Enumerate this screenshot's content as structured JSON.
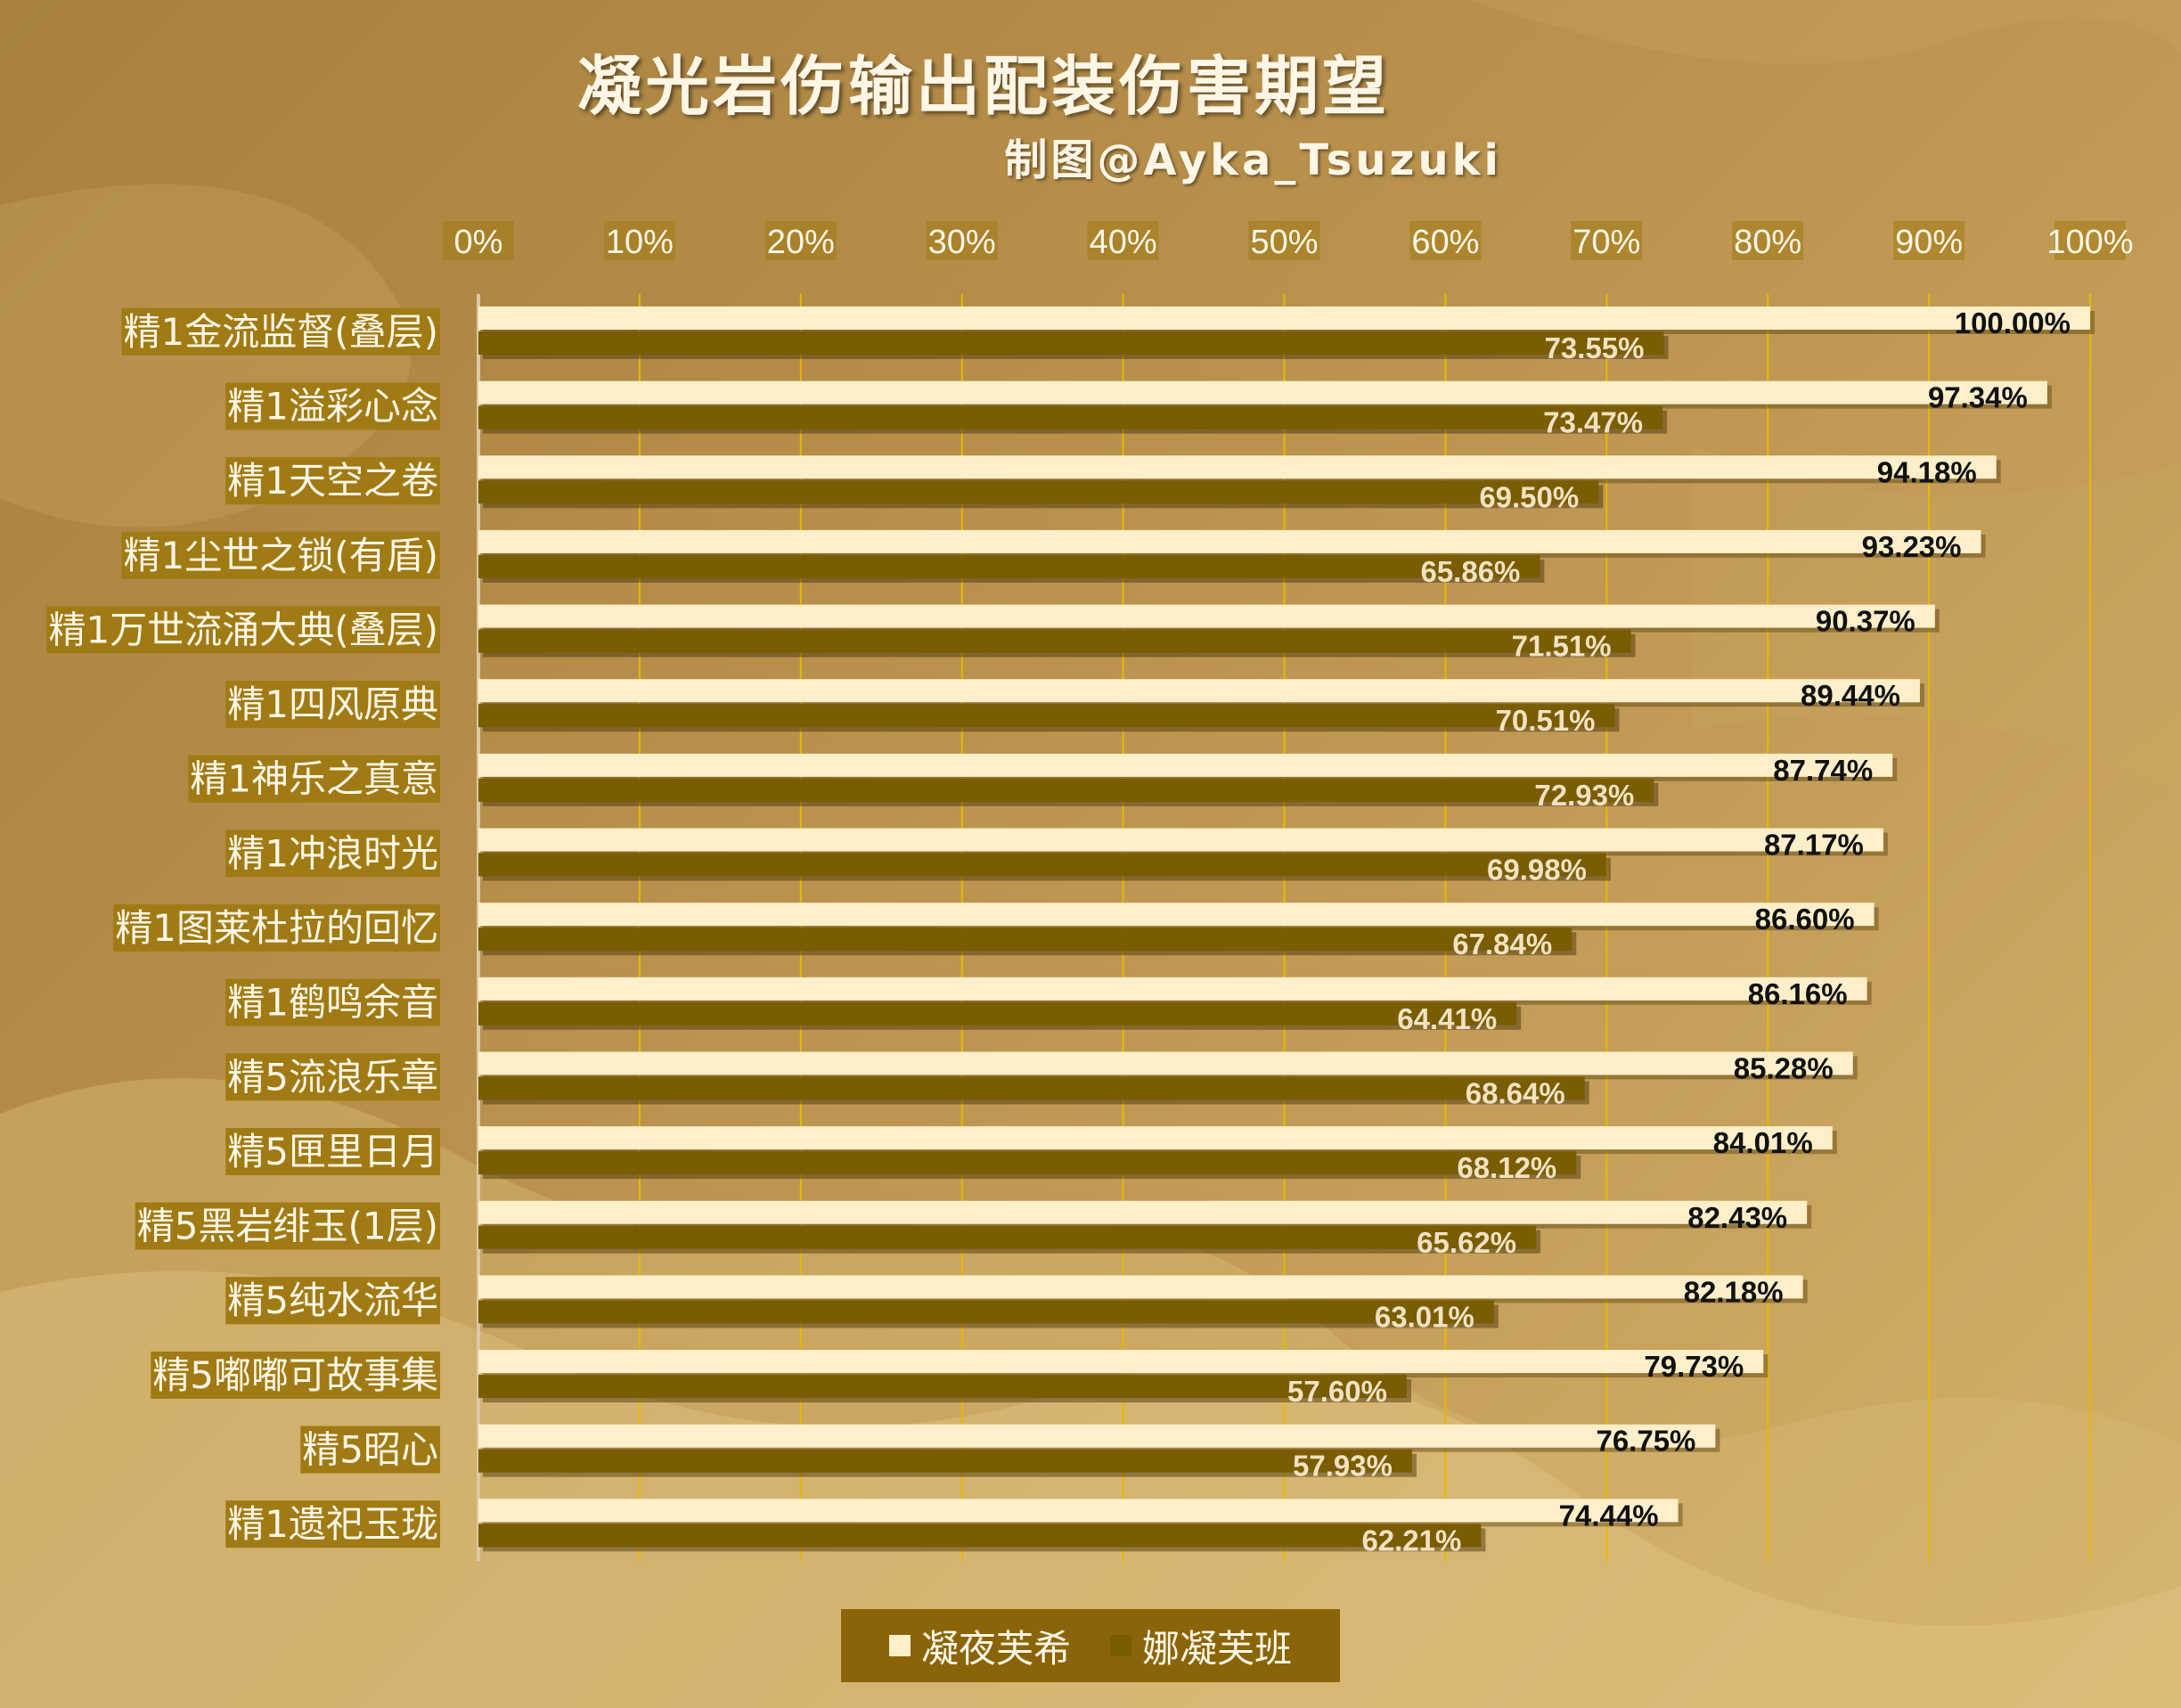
{
  "colors": {
    "series1": "#fdefca",
    "series2": "#7a5c02",
    "label_bg": "#a07a14",
    "gridline": "#e8b800",
    "value_label_dark": "#111111",
    "value_label_light": "#f2e2c2"
  },
  "chart_data": {
    "type": "bar",
    "orientation": "horizontal",
    "title": "凝光岩伤输出配装伤害期望",
    "subtitle": "制图@Ayka_Tsuzuki",
    "x_ticks": [
      "0%",
      "10%",
      "20%",
      "30%",
      "40%",
      "50%",
      "60%",
      "70%",
      "80%",
      "90%",
      "100%"
    ],
    "xlim": [
      0,
      100
    ],
    "grid": true,
    "legend_position": "bottom",
    "categories": [
      "精1金流监督(叠层)",
      "精1溢彩心念",
      "精1天空之卷",
      "精1尘世之锁(有盾)",
      "精1万世流涌大典(叠层)",
      "精1四风原典",
      "精1神乐之真意",
      "精1冲浪时光",
      "精1图莱杜拉的回忆",
      "精1鹤鸣余音",
      "精5流浪乐章",
      "精5匣里日月",
      "精5黑岩绯玉(1层)",
      "精5纯水流华",
      "精5嘟嘟可故事集",
      "精5昭心",
      "精1遗祀玉珑"
    ],
    "series": [
      {
        "name": "凝夜芙希",
        "values": [
          100.0,
          97.34,
          94.18,
          93.23,
          90.37,
          89.44,
          87.74,
          87.17,
          86.6,
          86.16,
          85.28,
          84.01,
          82.43,
          82.18,
          79.73,
          76.75,
          74.44
        ],
        "labels": [
          "100.00%",
          "97.34%",
          "94.18%",
          "93.23%",
          "90.37%",
          "89.44%",
          "87.74%",
          "87.17%",
          "86.60%",
          "86.16%",
          "85.28%",
          "84.01%",
          "82.43%",
          "82.18%",
          "79.73%",
          "76.75%",
          "74.44%"
        ]
      },
      {
        "name": "娜凝芙班",
        "values": [
          73.55,
          73.47,
          69.5,
          65.86,
          71.51,
          70.51,
          72.93,
          69.98,
          67.84,
          64.41,
          68.64,
          68.12,
          65.62,
          63.01,
          57.6,
          57.93,
          62.21
        ],
        "labels": [
          "73.55%",
          "73.47%",
          "69.50%",
          "65.86%",
          "71.51%",
          "70.51%",
          "72.93%",
          "69.98%",
          "67.84%",
          "64.41%",
          "68.64%",
          "68.12%",
          "65.62%",
          "63.01%",
          "57.60%",
          "57.93%",
          "62.21%"
        ]
      }
    ]
  }
}
